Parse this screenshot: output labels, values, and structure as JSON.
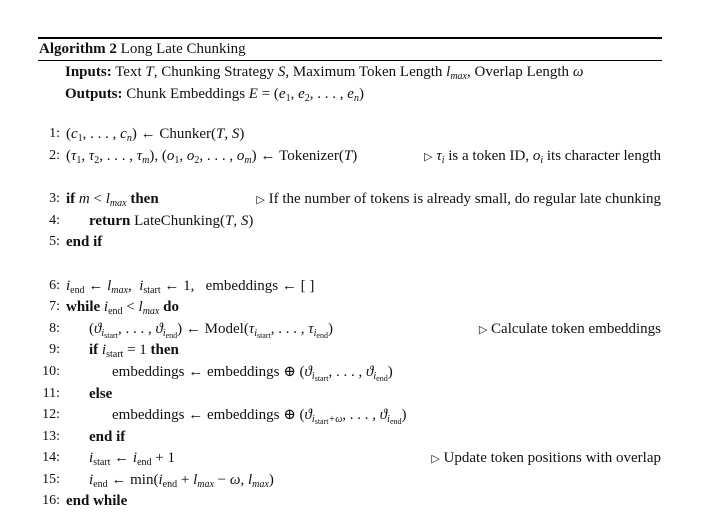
{
  "algorithm": {
    "label": "Algorithm 2",
    "title": "Long Late Chunking"
  },
  "inputs": {
    "label": "Inputs:",
    "text": "Text T, Chunking Strategy S, Maximum Token Length l_max, Overlap Length ω"
  },
  "outputs": {
    "label": "Outputs:",
    "text": "Chunk Embeddings E = (e1, e2, . . . , en)"
  },
  "lines": [
    {
      "n": "1:",
      "code": "(c1, . . . , cn) ← Chunker(T, S)",
      "comment": ""
    },
    {
      "n": "2:",
      "code": "(τ1, τ2, . . . , τm), (o1, o2, . . . , om) ← Tokenizer(T)",
      "comment": "τi is a token ID, oi its character length"
    },
    {
      "n": "3:",
      "code": "if m < l_max then",
      "comment": "If the number of tokens is already small, do regular late chunking"
    },
    {
      "n": "4:",
      "code": "return LateChunking(T, S)",
      "comment": ""
    },
    {
      "n": "5:",
      "code": "end if",
      "comment": ""
    },
    {
      "n": "6:",
      "code": "i_end ← l_max, i_start ← 1, embeddings ← [ ]",
      "comment": ""
    },
    {
      "n": "7:",
      "code": "while i_end < l_max do",
      "comment": ""
    },
    {
      "n": "8:",
      "code": "(ϑ_i_start, . . . , ϑ_i_end) ← Model(τ_i_start, . . . , τ_i_end)",
      "comment": "Calculate token embeddings"
    },
    {
      "n": "9:",
      "code": "if i_start = 1 then",
      "comment": ""
    },
    {
      "n": "10:",
      "code": "embeddings ← embeddings ⊕ (ϑ_i_start, . . . , ϑ_i_end)",
      "comment": ""
    },
    {
      "n": "11:",
      "code": "else",
      "comment": ""
    },
    {
      "n": "12:",
      "code": "embeddings ← embeddings ⊕ (ϑ_i_start+ω, . . . , ϑ_i_end)",
      "comment": ""
    },
    {
      "n": "13:",
      "code": "end if",
      "comment": ""
    },
    {
      "n": "14:",
      "code": "i_start ← i_end + 1",
      "comment": "Update token positions with overlap"
    },
    {
      "n": "15:",
      "code": "i_end ← min(i_end + l_max − ω, l_max)",
      "comment": ""
    },
    {
      "n": "16:",
      "code": "end while",
      "comment": ""
    }
  ]
}
